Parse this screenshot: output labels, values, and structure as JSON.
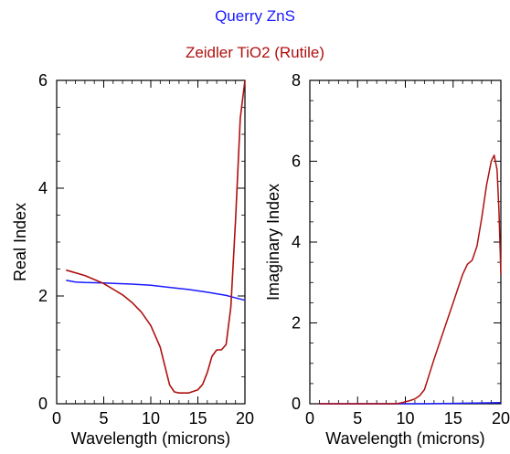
{
  "legend": [
    {
      "name": "Querry ZnS",
      "color": "#1a1aff"
    },
    {
      "name": "Zeidler TiO2 (Rutile)",
      "color": "#b01010"
    }
  ],
  "chart_data": [
    {
      "type": "line",
      "xlabel": "Wavelength (microns)",
      "ylabel": "Real Index",
      "xlim": [
        0,
        20
      ],
      "ylim": [
        0,
        6
      ],
      "xticks": [
        "0",
        "5",
        "10",
        "15",
        "20"
      ],
      "yticks": [
        "0",
        "2",
        "4",
        "6"
      ],
      "series": [
        {
          "name": "Querry ZnS",
          "color": "#1a1aff",
          "x": [
            1,
            2,
            3,
            5,
            8,
            10,
            12,
            14,
            16,
            18,
            20
          ],
          "y": [
            2.29,
            2.26,
            2.25,
            2.24,
            2.22,
            2.2,
            2.16,
            2.12,
            2.07,
            2.01,
            1.92
          ]
        },
        {
          "name": "Zeidler TiO2 (Rutile)",
          "color": "#b01010",
          "x": [
            1,
            3,
            5,
            7,
            8,
            9,
            10,
            11,
            11.5,
            12,
            12.5,
            13,
            14,
            15,
            15.5,
            16,
            16.5,
            17,
            17.5,
            18,
            18.5,
            19,
            19.5,
            20
          ],
          "y": [
            2.48,
            2.38,
            2.23,
            2.02,
            1.88,
            1.7,
            1.45,
            1.05,
            0.7,
            0.35,
            0.22,
            0.2,
            0.2,
            0.26,
            0.36,
            0.58,
            0.88,
            1.0,
            1.0,
            1.1,
            1.8,
            3.4,
            5.3,
            6.0
          ]
        }
      ]
    },
    {
      "type": "line",
      "xlabel": "Wavelength (microns)",
      "ylabel": "Imaginary Index",
      "xlim": [
        0,
        20
      ],
      "ylim": [
        0,
        8
      ],
      "xticks": [
        "0",
        "5",
        "10",
        "15",
        "20"
      ],
      "yticks": [
        "0",
        "2",
        "4",
        "6",
        "8"
      ],
      "series": [
        {
          "name": "Querry ZnS",
          "color": "#1a1aff",
          "x": [
            1,
            5,
            10,
            12,
            15,
            18,
            20
          ],
          "y": [
            0.0,
            0.0,
            0.0,
            0.0,
            0.01,
            0.02,
            0.03
          ]
        },
        {
          "name": "Zeidler TiO2 (Rutile)",
          "color": "#b01010",
          "x": [
            1,
            5,
            8,
            9,
            9.5,
            10,
            10.5,
            11,
            11.5,
            12,
            13,
            14,
            15,
            16,
            16.5,
            17,
            17.5,
            18,
            18.5,
            19,
            19.3,
            19.6,
            19.8,
            20
          ],
          "y": [
            0,
            0,
            0,
            0,
            0.02,
            0.05,
            0.08,
            0.12,
            0.2,
            0.35,
            1.1,
            1.8,
            2.5,
            3.2,
            3.45,
            3.55,
            3.9,
            4.6,
            5.4,
            6.0,
            6.15,
            5.8,
            4.8,
            3.2
          ]
        }
      ]
    }
  ]
}
